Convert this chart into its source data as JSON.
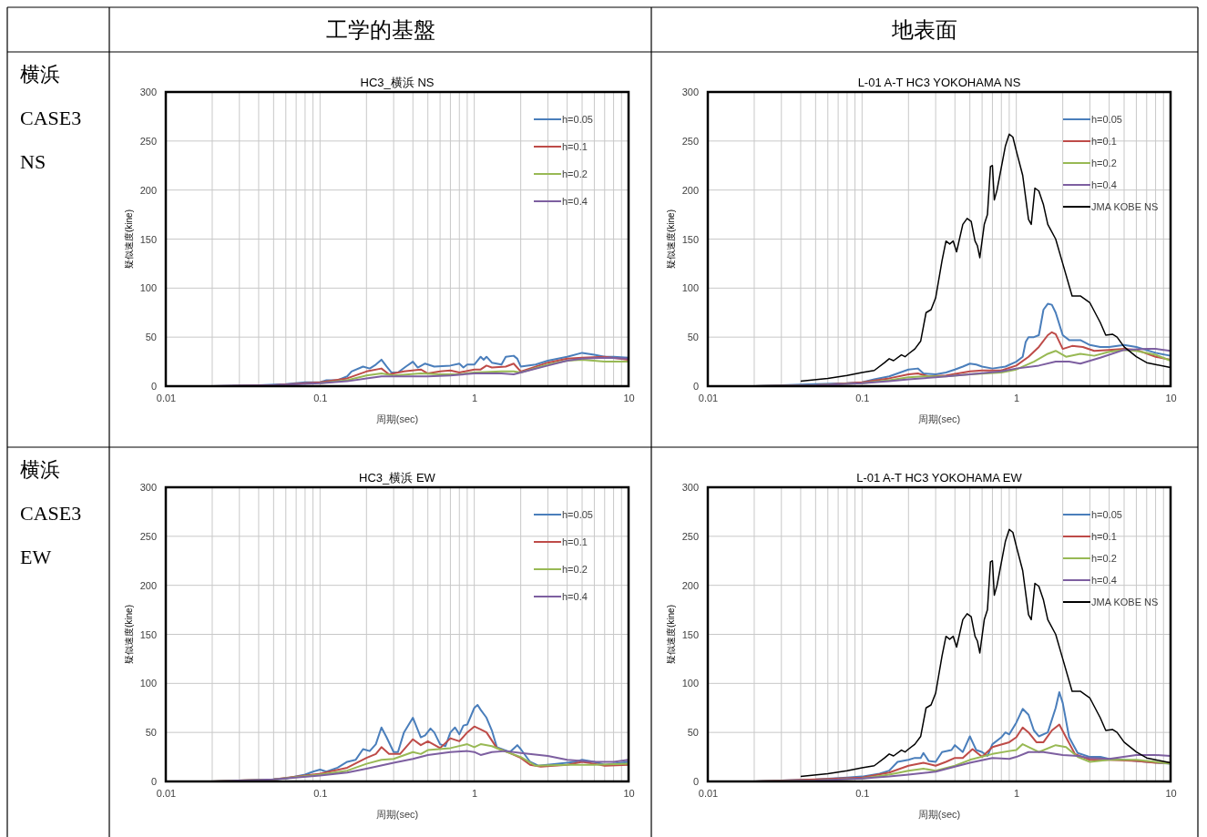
{
  "chart_data": [
    {
      "type": "line",
      "title": "HC3_横浜 NS",
      "xlabel": "周期(sec)",
      "ylabel": "疑似速度(kine)",
      "log": "x",
      "xlim": [
        0.01,
        10
      ],
      "xticks": [
        0.01,
        0.1,
        1,
        10
      ],
      "ylim": [
        0,
        300
      ],
      "yticks": [
        0,
        50,
        100,
        150,
        200,
        250,
        300
      ],
      "grid": true,
      "legend": "top right",
      "line_style": "solid",
      "marker": "none",
      "annotations": [
        "工学的基盤",
        "横浜",
        "CASE3",
        "NS"
      ],
      "series": [
        {
          "name": "h=0.05",
          "color": "#4a7ebb",
          "x": [
            0.02,
            0.04,
            0.06,
            0.08,
            0.1,
            0.11,
            0.13,
            0.15,
            0.16,
            0.19,
            0.21,
            0.23,
            0.25,
            0.27,
            0.29,
            0.32,
            0.36,
            0.4,
            0.43,
            0.48,
            0.55,
            0.7,
            0.8,
            0.85,
            0.9,
            1,
            1.1,
            1.15,
            1.2,
            1.3,
            1.5,
            1.6,
            1.8,
            1.9,
            2,
            2.5,
            3,
            4,
            5,
            6,
            7,
            8,
            10
          ],
          "values": [
            0,
            1,
            2,
            4,
            4,
            6,
            6,
            10,
            15,
            20,
            18,
            22,
            27,
            20,
            14,
            14,
            20,
            25,
            19,
            23,
            20,
            21,
            23,
            19,
            22,
            22,
            30,
            27,
            30,
            24,
            22,
            30,
            31,
            28,
            20,
            22,
            26,
            30,
            34,
            32,
            30,
            30,
            29
          ]
        },
        {
          "name": "h=0.1",
          "color": "#be4b48",
          "x": [
            0.02,
            0.05,
            0.08,
            0.1,
            0.15,
            0.2,
            0.25,
            0.28,
            0.35,
            0.45,
            0.5,
            0.6,
            0.7,
            0.8,
            1,
            1.1,
            1.2,
            1.3,
            1.6,
            1.8,
            2,
            3,
            4,
            5,
            7,
            10
          ],
          "values": [
            0,
            1,
            3,
            4,
            8,
            15,
            18,
            12,
            15,
            17,
            13,
            15,
            16,
            14,
            17,
            17,
            21,
            19,
            20,
            23,
            15,
            24,
            28,
            29,
            30,
            27
          ]
        },
        {
          "name": "h=0.2",
          "color": "#98b954",
          "x": [
            0.1,
            0.15,
            0.2,
            0.25,
            0.3,
            0.45,
            0.6,
            0.8,
            1,
            1.5,
            1.8,
            2,
            3,
            4,
            5,
            7,
            10
          ],
          "values": [
            3,
            6,
            11,
            13,
            11,
            13,
            12,
            12,
            14,
            15,
            15,
            14,
            22,
            26,
            27,
            25,
            25
          ]
        },
        {
          "name": "h=0.4",
          "color": "#7d5fa0",
          "x": [
            0.02,
            0.05,
            0.1,
            0.15,
            0.2,
            0.25,
            0.4,
            0.5,
            0.7,
            1,
            1.5,
            1.8,
            2,
            3,
            4,
            5,
            7,
            10
          ],
          "values": [
            0,
            1,
            3,
            5,
            8,
            10,
            10,
            10,
            11,
            13,
            13,
            12,
            14,
            21,
            26,
            28,
            29,
            28
          ]
        }
      ]
    },
    {
      "type": "line",
      "title": "L-01 A-T  HC3 YOKOHAMA NS",
      "xlabel": "周期(sec)",
      "ylabel": "疑似速度(kine)",
      "log": "x",
      "xlim": [
        0.01,
        10
      ],
      "xticks": [
        0.01,
        0.1,
        1,
        10
      ],
      "ylim": [
        0,
        300
      ],
      "yticks": [
        0,
        50,
        100,
        150,
        200,
        250,
        300
      ],
      "grid": true,
      "legend": "top right",
      "line_style": "solid",
      "marker": "none",
      "annotations": [
        "地表面"
      ],
      "series": [
        {
          "name": "h=0.05",
          "color": "#4a7ebb",
          "x": [
            0.02,
            0.05,
            0.08,
            0.1,
            0.12,
            0.15,
            0.17,
            0.2,
            0.23,
            0.25,
            0.3,
            0.35,
            0.4,
            0.45,
            0.5,
            0.55,
            0.6,
            0.7,
            0.85,
            1,
            1.1,
            1.15,
            1.2,
            1.3,
            1.4,
            1.5,
            1.6,
            1.7,
            1.8,
            2,
            2.2,
            2.6,
            3,
            3.5,
            4,
            5,
            6,
            8,
            10
          ],
          "values": [
            0,
            2,
            3,
            4,
            7,
            10,
            13,
            17,
            18,
            13,
            12,
            14,
            17,
            20,
            23,
            22,
            20,
            18,
            20,
            25,
            30,
            45,
            50,
            50,
            52,
            78,
            84,
            83,
            75,
            52,
            47,
            47,
            42,
            40,
            40,
            42,
            40,
            34,
            31
          ]
        },
        {
          "name": "h=0.1",
          "color": "#be4b48",
          "x": [
            0.02,
            0.05,
            0.1,
            0.15,
            0.2,
            0.23,
            0.27,
            0.35,
            0.5,
            0.6,
            0.8,
            1,
            1.2,
            1.4,
            1.6,
            1.7,
            1.8,
            2,
            2.3,
            2.7,
            3.2,
            4,
            5,
            6,
            8,
            10
          ],
          "values": [
            0,
            1,
            4,
            8,
            12,
            13,
            10,
            11,
            15,
            16,
            16,
            21,
            30,
            40,
            52,
            55,
            53,
            38,
            41,
            40,
            36,
            37,
            38,
            37,
            30,
            27
          ]
        },
        {
          "name": "h=0.2",
          "color": "#98b954",
          "x": [
            0.02,
            0.05,
            0.1,
            0.15,
            0.2,
            0.25,
            0.35,
            0.5,
            0.8,
            1,
            1.3,
            1.6,
            1.8,
            2.1,
            2.6,
            3.2,
            4,
            5,
            6,
            8,
            10
          ],
          "values": [
            0,
            1,
            3,
            6,
            9,
            10,
            10,
            12,
            14,
            17,
            25,
            33,
            36,
            30,
            33,
            31,
            35,
            37,
            36,
            32,
            26
          ]
        },
        {
          "name": "h=0.4",
          "color": "#7d5fa0",
          "x": [
            0.02,
            0.05,
            0.1,
            0.15,
            0.2,
            0.3,
            0.5,
            0.8,
            1,
            1.4,
            1.8,
            2.2,
            2.6,
            3.5,
            5,
            7,
            8,
            10
          ],
          "values": [
            0,
            1,
            3,
            5,
            7,
            9,
            12,
            15,
            18,
            21,
            25,
            25,
            23,
            29,
            37,
            38,
            38,
            36
          ]
        },
        {
          "name": "JMA KOBE NS",
          "color": "#000000",
          "x": [
            0.04,
            0.06,
            0.08,
            0.1,
            0.12,
            0.14,
            0.15,
            0.16,
            0.18,
            0.19,
            0.2,
            0.22,
            0.24,
            0.26,
            0.28,
            0.3,
            0.33,
            0.35,
            0.37,
            0.39,
            0.41,
            0.45,
            0.48,
            0.51,
            0.54,
            0.56,
            0.58,
            0.62,
            0.65,
            0.68,
            0.7,
            0.72,
            0.75,
            0.85,
            0.9,
            0.95,
            1,
            1.1,
            1.2,
            1.25,
            1.32,
            1.4,
            1.5,
            1.6,
            1.8,
            2,
            2.3,
            2.6,
            3,
            3.5,
            3.8,
            4.2,
            4.5,
            5,
            6,
            7,
            8,
            10
          ],
          "values": [
            5,
            8,
            11,
            14,
            16,
            24,
            28,
            26,
            32,
            30,
            33,
            38,
            46,
            75,
            78,
            90,
            128,
            148,
            145,
            148,
            137,
            165,
            171,
            168,
            148,
            143,
            131,
            165,
            175,
            224,
            225,
            190,
            200,
            245,
            257,
            254,
            240,
            215,
            170,
            165,
            202,
            199,
            185,
            165,
            150,
            125,
            92,
            92,
            85,
            65,
            52,
            53,
            50,
            40,
            30,
            24,
            22,
            19
          ]
        }
      ]
    },
    {
      "type": "line",
      "title": "HC3_横浜 EW",
      "xlabel": "周期(sec)",
      "ylabel": "疑似速度(kine)",
      "log": "x",
      "xlim": [
        0.01,
        10
      ],
      "xticks": [
        0.01,
        0.1,
        1,
        10
      ],
      "ylim": [
        0,
        300
      ],
      "yticks": [
        0,
        50,
        100,
        150,
        200,
        250,
        300
      ],
      "grid": true,
      "legend": "top right",
      "line_style": "solid",
      "marker": "none",
      "annotations": [
        "横浜",
        "CASE3",
        "EW"
      ],
      "series": [
        {
          "name": "h=0.05",
          "color": "#4a7ebb",
          "x": [
            0.02,
            0.04,
            0.06,
            0.08,
            0.09,
            0.1,
            0.11,
            0.13,
            0.15,
            0.17,
            0.19,
            0.21,
            0.23,
            0.25,
            0.27,
            0.3,
            0.32,
            0.35,
            0.4,
            0.45,
            0.48,
            0.52,
            0.55,
            0.6,
            0.65,
            0.7,
            0.75,
            0.8,
            0.85,
            0.9,
            1,
            1.05,
            1.1,
            1.2,
            1.3,
            1.4,
            1.7,
            1.9,
            2,
            2.3,
            2.6,
            3.5,
            4.5,
            5,
            6,
            7,
            10
          ],
          "values": [
            0,
            1,
            3,
            7,
            10,
            12,
            10,
            14,
            20,
            22,
            33,
            31,
            38,
            55,
            45,
            30,
            30,
            50,
            65,
            45,
            47,
            54,
            50,
            38,
            36,
            50,
            55,
            48,
            57,
            58,
            75,
            78,
            73,
            65,
            52,
            35,
            30,
            37,
            33,
            20,
            16,
            18,
            20,
            22,
            20,
            17,
            20
          ]
        },
        {
          "name": "h=0.1",
          "color": "#be4b48",
          "x": [
            0.02,
            0.05,
            0.1,
            0.15,
            0.2,
            0.23,
            0.25,
            0.28,
            0.33,
            0.4,
            0.45,
            0.5,
            0.6,
            0.7,
            0.8,
            0.9,
            1,
            1.1,
            1.2,
            1.4,
            1.7,
            2,
            2.3,
            2.7,
            4,
            5,
            6,
            7,
            10
          ],
          "values": [
            0,
            2,
            8,
            14,
            24,
            28,
            35,
            28,
            28,
            43,
            37,
            41,
            34,
            44,
            41,
            50,
            56,
            53,
            50,
            34,
            29,
            24,
            17,
            15,
            17,
            20,
            18,
            16,
            17
          ]
        },
        {
          "name": "h=0.2",
          "color": "#98b954",
          "x": [
            0.02,
            0.05,
            0.1,
            0.15,
            0.2,
            0.25,
            0.3,
            0.4,
            0.45,
            0.5,
            0.7,
            0.9,
            1,
            1.1,
            1.3,
            1.5,
            2,
            2.5,
            4,
            6,
            10
          ],
          "values": [
            0,
            2,
            7,
            11,
            18,
            22,
            23,
            30,
            28,
            32,
            34,
            38,
            35,
            38,
            36,
            32,
            25,
            16,
            17,
            17,
            18
          ]
        },
        {
          "name": "h=0.4",
          "color": "#7d5fa0",
          "x": [
            0.02,
            0.05,
            0.1,
            0.15,
            0.2,
            0.3,
            0.4,
            0.5,
            0.7,
            0.9,
            1,
            1.1,
            1.3,
            1.6,
            2,
            3,
            4,
            6,
            8,
            10
          ],
          "values": [
            0,
            2,
            6,
            9,
            13,
            19,
            23,
            27,
            30,
            31,
            30,
            27,
            30,
            31,
            29,
            26,
            22,
            20,
            20,
            22
          ]
        }
      ]
    },
    {
      "type": "line",
      "title": "L-01 A-T  HC3 YOKOHAMA EW",
      "xlabel": "周期(sec)",
      "ylabel": "疑似速度(kine)",
      "log": "x",
      "xlim": [
        0.01,
        10
      ],
      "xticks": [
        0.01,
        0.1,
        1,
        10
      ],
      "ylim": [
        0,
        300
      ],
      "yticks": [
        0,
        50,
        100,
        150,
        200,
        250,
        300
      ],
      "grid": true,
      "legend": "top right",
      "line_style": "solid",
      "marker": "none",
      "series": [
        {
          "name": "h=0.05",
          "color": "#4a7ebb",
          "x": [
            0.02,
            0.05,
            0.08,
            0.1,
            0.13,
            0.15,
            0.17,
            0.2,
            0.22,
            0.24,
            0.25,
            0.27,
            0.3,
            0.33,
            0.38,
            0.4,
            0.45,
            0.5,
            0.55,
            0.6,
            0.65,
            0.7,
            0.8,
            0.85,
            0.9,
            1,
            1.1,
            1.2,
            1.3,
            1.4,
            1.6,
            1.8,
            1.9,
            2,
            2.2,
            2.5,
            3,
            3.5,
            4,
            5,
            7,
            10
          ],
          "values": [
            0,
            2,
            4,
            5,
            8,
            11,
            20,
            22,
            24,
            24,
            29,
            21,
            20,
            30,
            32,
            37,
            30,
            46,
            32,
            30,
            26,
            38,
            45,
            50,
            48,
            60,
            74,
            68,
            52,
            46,
            50,
            75,
            91,
            80,
            45,
            29,
            25,
            25,
            23,
            22,
            20,
            18
          ]
        },
        {
          "name": "h=0.1",
          "color": "#be4b48",
          "x": [
            0.02,
            0.05,
            0.1,
            0.15,
            0.2,
            0.25,
            0.3,
            0.35,
            0.4,
            0.45,
            0.52,
            0.6,
            0.7,
            0.9,
            1,
            1.1,
            1.2,
            1.35,
            1.5,
            1.7,
            1.9,
            2.1,
            2.4,
            3,
            4,
            6,
            8,
            10
          ],
          "values": [
            0,
            2,
            4,
            9,
            16,
            19,
            16,
            20,
            24,
            24,
            33,
            25,
            35,
            40,
            45,
            55,
            50,
            40,
            40,
            52,
            58,
            45,
            28,
            22,
            22,
            21,
            19,
            19
          ]
        },
        {
          "name": "h=0.2",
          "color": "#98b954",
          "x": [
            0.02,
            0.05,
            0.1,
            0.15,
            0.2,
            0.25,
            0.3,
            0.4,
            0.5,
            0.7,
            0.9,
            1,
            1.1,
            1.4,
            1.8,
            2.1,
            2.5,
            3,
            4,
            6,
            8,
            10
          ],
          "values": [
            0,
            1,
            3,
            7,
            11,
            13,
            11,
            16,
            22,
            28,
            31,
            32,
            38,
            30,
            37,
            35,
            25,
            20,
            22,
            22,
            20,
            18
          ]
        },
        {
          "name": "h=0.4",
          "color": "#7d5fa0",
          "x": [
            0.02,
            0.05,
            0.1,
            0.15,
            0.2,
            0.3,
            0.5,
            0.7,
            0.9,
            1,
            1.2,
            1.5,
            2,
            2.5,
            3,
            4,
            6,
            8,
            10
          ],
          "values": [
            0,
            1,
            3,
            5,
            7,
            10,
            19,
            24,
            23,
            25,
            30,
            30,
            27,
            26,
            24,
            23,
            27,
            27,
            26
          ]
        },
        {
          "name": "JMA KOBE NS",
          "color": "#000000",
          "x": [
            0.04,
            0.06,
            0.08,
            0.1,
            0.12,
            0.14,
            0.15,
            0.16,
            0.18,
            0.19,
            0.2,
            0.22,
            0.24,
            0.26,
            0.28,
            0.3,
            0.33,
            0.35,
            0.37,
            0.39,
            0.41,
            0.45,
            0.48,
            0.51,
            0.54,
            0.56,
            0.58,
            0.62,
            0.65,
            0.68,
            0.7,
            0.72,
            0.75,
            0.85,
            0.9,
            0.95,
            1,
            1.1,
            1.2,
            1.25,
            1.32,
            1.4,
            1.5,
            1.6,
            1.8,
            2,
            2.3,
            2.6,
            3,
            3.5,
            3.8,
            4.2,
            4.5,
            5,
            6,
            7,
            8,
            10
          ],
          "values": [
            5,
            8,
            11,
            14,
            16,
            24,
            28,
            26,
            32,
            30,
            33,
            38,
            46,
            75,
            78,
            90,
            128,
            148,
            145,
            148,
            137,
            165,
            171,
            168,
            148,
            143,
            131,
            165,
            175,
            224,
            225,
            190,
            200,
            245,
            257,
            254,
            240,
            215,
            170,
            165,
            202,
            199,
            185,
            165,
            150,
            125,
            92,
            92,
            85,
            65,
            52,
            53,
            50,
            40,
            30,
            24,
            22,
            19
          ]
        }
      ]
    }
  ]
}
